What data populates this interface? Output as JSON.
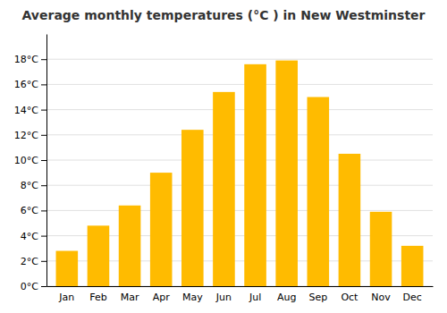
{
  "chart_data": {
    "type": "bar",
    "title": "Average monthly temperatures (°C ) in New Westminster",
    "categories": [
      "Jan",
      "Feb",
      "Mar",
      "Apr",
      "May",
      "Jun",
      "Jul",
      "Aug",
      "Sep",
      "Oct",
      "Nov",
      "Dec"
    ],
    "values": [
      2.8,
      4.8,
      6.4,
      9.0,
      12.4,
      15.4,
      17.6,
      17.9,
      15.0,
      10.5,
      5.9,
      3.2
    ],
    "color": "#FFBB00",
    "ylim": [
      0,
      20
    ],
    "yticks": [
      {
        "value": 0,
        "label": "0°C"
      },
      {
        "value": 2,
        "label": "2°C"
      },
      {
        "value": 4,
        "label": "4°C"
      },
      {
        "value": 6,
        "label": "6°C"
      },
      {
        "value": 8,
        "label": "8°C"
      },
      {
        "value": 10,
        "label": "10°C"
      },
      {
        "value": 12,
        "label": "12°C"
      },
      {
        "value": 14,
        "label": "14°C"
      },
      {
        "value": 16,
        "label": "16°C"
      },
      {
        "value": 18,
        "label": "18°C"
      }
    ],
    "grid": true
  }
}
